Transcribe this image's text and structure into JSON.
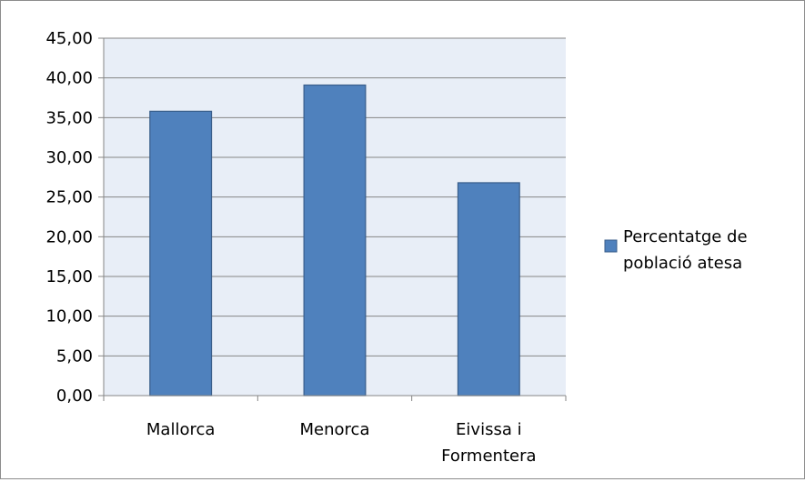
{
  "chart_data": {
    "type": "bar",
    "categories": [
      "Mallorca",
      "Menorca",
      "Eivissa i Formentera"
    ],
    "category_lines": [
      [
        "Mallorca"
      ],
      [
        "Menorca"
      ],
      [
        "Eivissa i",
        "Formentera"
      ]
    ],
    "series": [
      {
        "name": "Percentatge de població atesa",
        "values": [
          35.8,
          39.1,
          26.8
        ]
      }
    ],
    "legend_lines": [
      "Percentatge de",
      "població atesa"
    ],
    "legend_position": "right",
    "ylim": [
      0,
      45
    ],
    "y_ticks": [
      0,
      5,
      10,
      15,
      20,
      25,
      30,
      35,
      40,
      45
    ],
    "y_tick_labels": [
      "0,00",
      "5,00",
      "10,00",
      "15,00",
      "20,00",
      "25,00",
      "30,00",
      "35,00",
      "40,00",
      "45,00"
    ],
    "grid": true,
    "colors": {
      "bar": "#4f81bd",
      "bar_border": "#385d8a",
      "plot_bg": "#e8eef7",
      "grid": "#868686",
      "axis": "#868686"
    },
    "title": "",
    "xlabel": "",
    "ylabel": ""
  }
}
